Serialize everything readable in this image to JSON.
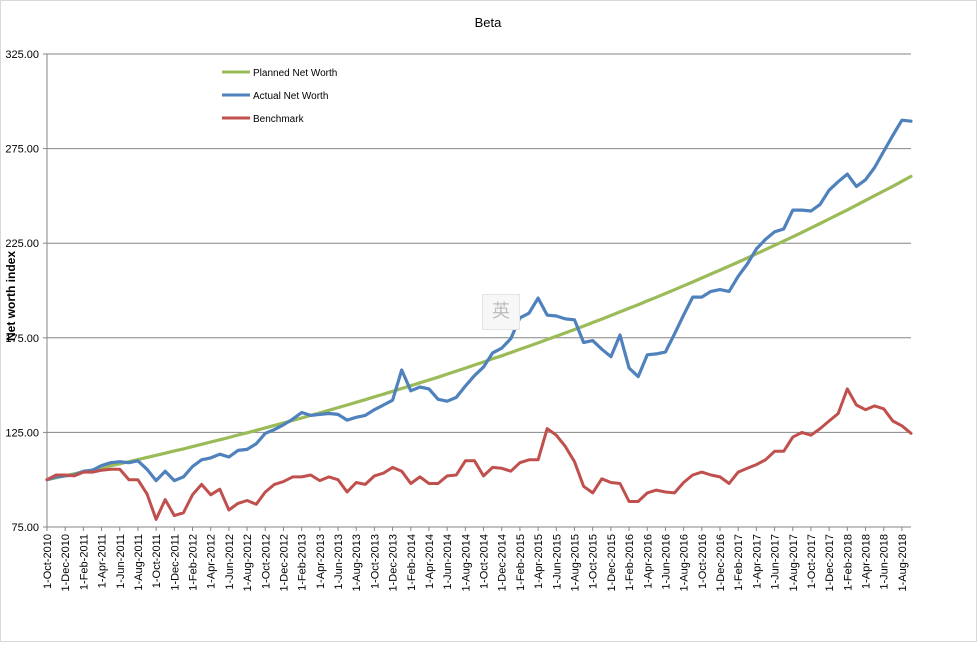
{
  "chart_data": {
    "type": "line",
    "title": "Beta",
    "xlabel": "",
    "ylabel": "Net worth index",
    "ylim": [
      75,
      325
    ],
    "yticks": [
      "75.00",
      "125.00",
      "175.00",
      "225.00",
      "275.00",
      "325.00"
    ],
    "grid": "horizontal",
    "legend_position": "top-left",
    "xticks": [
      "1-Oct-2010",
      "1-Dec-2010",
      "1-Feb-2011",
      "1-Apr-2011",
      "1-Jun-2011",
      "1-Aug-2011",
      "1-Oct-2011",
      "1-Dec-2011",
      "1-Feb-2012",
      "1-Apr-2012",
      "1-Jun-2012",
      "1-Aug-2012",
      "1-Oct-2012",
      "1-Dec-2012",
      "1-Feb-2013",
      "1-Apr-2013",
      "1-Jun-2013",
      "1-Aug-2013",
      "1-Oct-2013",
      "1-Dec-2013",
      "1-Feb-2014",
      "1-Apr-2014",
      "1-Jun-2014",
      "1-Aug-2014",
      "1-Oct-2014",
      "1-Dec-2014",
      "1-Feb-2015",
      "1-Apr-2015",
      "1-Jun-2015",
      "1-Aug-2015",
      "1-Oct-2015",
      "1-Dec-2015",
      "1-Feb-2016",
      "1-Apr-2016",
      "1-Jun-2016",
      "1-Aug-2016",
      "1-Oct-2016",
      "1-Dec-2016",
      "1-Feb-2017",
      "1-Apr-2017",
      "1-Jun-2017",
      "1-Aug-2017",
      "1-Oct-2017",
      "1-Dec-2017",
      "1-Feb-2018",
      "1-Apr-2018",
      "1-Jun-2018",
      "1-Aug-2018"
    ],
    "months": [
      "Oct-2010",
      "Nov-2010",
      "Dec-2010",
      "Jan-2011",
      "Feb-2011",
      "Mar-2011",
      "Apr-2011",
      "May-2011",
      "Jun-2011",
      "Jul-2011",
      "Aug-2011",
      "Sep-2011",
      "Oct-2011",
      "Nov-2011",
      "Dec-2011",
      "Jan-2012",
      "Feb-2012",
      "Mar-2012",
      "Apr-2012",
      "May-2012",
      "Jun-2012",
      "Jul-2012",
      "Aug-2012",
      "Sep-2012",
      "Oct-2012",
      "Nov-2012",
      "Dec-2012",
      "Jan-2013",
      "Feb-2013",
      "Mar-2013",
      "Apr-2013",
      "May-2013",
      "Jun-2013",
      "Jul-2013",
      "Aug-2013",
      "Sep-2013",
      "Oct-2013",
      "Nov-2013",
      "Dec-2013",
      "Jan-2014",
      "Feb-2014",
      "Mar-2014",
      "Apr-2014",
      "May-2014",
      "Jun-2014",
      "Jul-2014",
      "Aug-2014",
      "Sep-2014",
      "Oct-2014",
      "Nov-2014",
      "Dec-2014",
      "Jan-2015",
      "Feb-2015",
      "Mar-2015",
      "Apr-2015",
      "May-2015",
      "Jun-2015",
      "Jul-2015",
      "Aug-2015",
      "Sep-2015",
      "Oct-2015",
      "Nov-2015",
      "Dec-2015",
      "Jan-2016",
      "Feb-2016",
      "Mar-2016",
      "Apr-2016",
      "May-2016",
      "Jun-2016",
      "Jul-2016",
      "Aug-2016",
      "Sep-2016",
      "Oct-2016",
      "Nov-2016",
      "Dec-2016",
      "Jan-2017",
      "Feb-2017",
      "Mar-2017",
      "Apr-2017",
      "May-2017",
      "Jun-2017",
      "Jul-2017",
      "Aug-2017",
      "Sep-2017",
      "Oct-2017",
      "Nov-2017",
      "Dec-2017",
      "Jan-2018",
      "Feb-2018",
      "Mar-2018",
      "Apr-2018",
      "May-2018",
      "Jun-2018",
      "Jul-2018",
      "Aug-2018",
      "Sep-2018"
    ],
    "series": [
      {
        "name": "Planned Net Worth",
        "color": "#9bbb59",
        "values": [
          100.0,
          101.0,
          102.1,
          103.1,
          104.2,
          105.2,
          106.3,
          107.4,
          108.4,
          109.5,
          110.6,
          111.8,
          112.9,
          114.0,
          115.2,
          116.3,
          117.5,
          118.7,
          119.9,
          121.1,
          122.3,
          123.6,
          124.8,
          126.1,
          127.4,
          128.7,
          130.0,
          131.3,
          132.6,
          134.0,
          135.3,
          136.7,
          138.1,
          139.5,
          140.9,
          142.3,
          143.8,
          145.2,
          146.7,
          148.2,
          149.7,
          151.2,
          152.7,
          154.2,
          155.8,
          157.4,
          159.0,
          160.6,
          162.2,
          163.9,
          165.5,
          167.2,
          168.9,
          170.6,
          172.3,
          174.1,
          175.8,
          177.6,
          179.4,
          181.2,
          183.1,
          184.9,
          186.8,
          188.7,
          190.6,
          192.5,
          194.5,
          196.4,
          198.4,
          200.4,
          202.5,
          204.5,
          206.6,
          208.7,
          210.8,
          212.9,
          215.0,
          217.2,
          219.4,
          221.6,
          223.9,
          226.1,
          228.4,
          230.7,
          233.1,
          235.4,
          237.8,
          240.2,
          242.6,
          245.1,
          247.6,
          250.1,
          252.6,
          255.1,
          257.7,
          260.3
        ],
        "stroke_width": 3.2
      },
      {
        "name": "Actual Net Worth",
        "color": "#4f81bd",
        "values": [
          100.0,
          101.5,
          102.0,
          102.5,
          104.5,
          105.0,
          107.5,
          109.0,
          109.5,
          109.0,
          110.0,
          105.5,
          99.5,
          104.5,
          99.5,
          101.5,
          107.0,
          110.5,
          111.5,
          113.5,
          112.0,
          115.5,
          116.0,
          119.0,
          124.5,
          126.5,
          129.0,
          132.0,
          135.5,
          134.0,
          134.5,
          135.0,
          134.5,
          131.5,
          133.0,
          134.0,
          137.0,
          139.5,
          142.0,
          158.0,
          147.0,
          149.0,
          148.0,
          142.5,
          141.5,
          143.5,
          149.5,
          155.0,
          159.5,
          167.0,
          169.5,
          174.5,
          185.5,
          188.0,
          196.0,
          187.0,
          186.5,
          185.0,
          184.5,
          172.5,
          173.5,
          169.0,
          165.0,
          176.5,
          159.0,
          154.5,
          166.0,
          166.5,
          167.5,
          177.0,
          187.0,
          196.5,
          196.5,
          199.5,
          200.5,
          199.5,
          207.5,
          214.0,
          222.0,
          227.0,
          231.0,
          232.5,
          242.5,
          242.5,
          242.0,
          245.5,
          253.0,
          257.5,
          261.5,
          255.0,
          258.5,
          265.0,
          273.5,
          282.0,
          290.0,
          289.5
        ],
        "stroke_width": 3.2
      },
      {
        "name": "Benchmark",
        "color": "#c0504d",
        "values": [
          100.0,
          102.5,
          102.5,
          102.0,
          104.0,
          104.0,
          105.0,
          105.5,
          105.5,
          100.0,
          100.0,
          92.5,
          79.0,
          89.5,
          81.0,
          82.5,
          92.0,
          97.5,
          92.0,
          95.0,
          84.0,
          87.5,
          89.0,
          87.0,
          93.5,
          97.5,
          99.0,
          101.5,
          101.5,
          102.5,
          99.5,
          101.5,
          100.0,
          93.5,
          98.5,
          97.5,
          102.0,
          103.5,
          106.5,
          104.5,
          98.0,
          101.5,
          98.0,
          98.0,
          102.0,
          102.5,
          110.0,
          110.0,
          102.0,
          106.5,
          106.0,
          104.5,
          109.0,
          110.5,
          110.5,
          127.0,
          123.5,
          117.5,
          109.5,
          96.5,
          93.0,
          100.5,
          98.5,
          98.0,
          88.5,
          88.5,
          93.0,
          94.5,
          93.5,
          93.0,
          98.5,
          102.5,
          104.0,
          102.5,
          101.5,
          98.0,
          104.0,
          106.0,
          108.0,
          110.5,
          115.0,
          115.0,
          122.5,
          125.0,
          123.5,
          127.0,
          131.0,
          135.0,
          148.0,
          139.5,
          137.0,
          139.0,
          137.5,
          131.0,
          128.5,
          124.5
        ],
        "stroke_width": 3.0
      }
    ]
  },
  "watermark": {
    "text": "英"
  }
}
